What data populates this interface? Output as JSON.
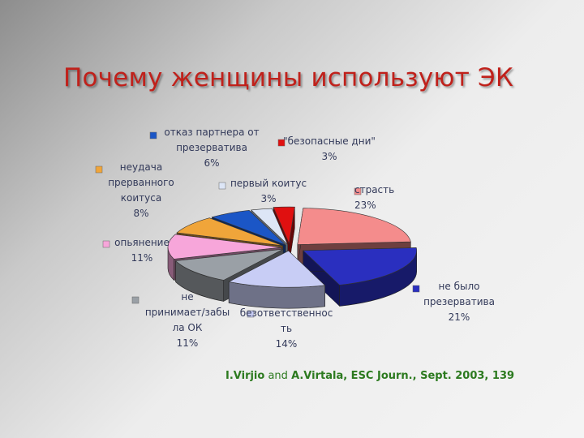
{
  "title": "Почему женщины используют ЭК",
  "source": {
    "author1": "I.Virjio",
    "and": " and ",
    "author2": "A.Virtala, ESC Journ., Sept. 2003, 139"
  },
  "chart_data": {
    "type": "pie",
    "slices": [
      {
        "lines": [
          "страсть",
          "23%"
        ],
        "value": 23,
        "color": "#f48c8c"
      },
      {
        "lines": [
          "не было",
          "презерватива",
          "21%"
        ],
        "value": 21,
        "color": "#2a2fbf"
      },
      {
        "lines": [
          "безответственнос",
          "ть",
          "14%"
        ],
        "value": 14,
        "color": "#c8cdf5"
      },
      {
        "lines": [
          "не",
          "принимает/забы",
          "ла ОК",
          "11%"
        ],
        "value": 11,
        "color": "#9aa0a6"
      },
      {
        "lines": [
          "опьянение",
          "11%"
        ],
        "value": 11,
        "color": "#f7a6da"
      },
      {
        "lines": [
          "неудача",
          "прерванного",
          "коитуса",
          "8%"
        ],
        "value": 8,
        "color": "#f0a53a"
      },
      {
        "lines": [
          "отказ партнера от",
          "презерватива",
          "6%"
        ],
        "value": 6,
        "color": "#1b56c6"
      },
      {
        "lines": [
          "первый коитус",
          "3%"
        ],
        "value": 3,
        "color": "#dde6f6"
      },
      {
        "lines": [
          "\"безопасные дни\"",
          "3%"
        ],
        "value": 3,
        "color": "#e01010"
      }
    ]
  }
}
